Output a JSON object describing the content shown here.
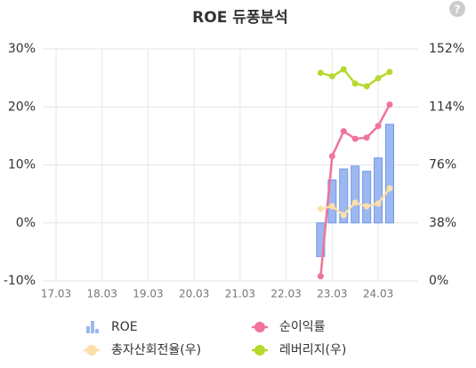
{
  "help": "?",
  "chart_data": {
    "type": "combo",
    "title": "ROE 듀퐁분석",
    "categories": [
      "17.03",
      null,
      null,
      null,
      "18.03",
      null,
      null,
      null,
      "19.03",
      null,
      null,
      null,
      "20.03",
      null,
      null,
      null,
      "21.03",
      null,
      null,
      null,
      "22.03",
      null,
      null,
      null,
      "23.03",
      null,
      null,
      null,
      "24.03",
      null
    ],
    "series": [
      {
        "name": "ROE",
        "type": "bar",
        "axis": "y",
        "color": "#9db8f0",
        "values": [
          null,
          null,
          null,
          null,
          null,
          null,
          null,
          null,
          null,
          null,
          null,
          null,
          null,
          null,
          null,
          null,
          null,
          null,
          null,
          null,
          null,
          null,
          null,
          -5.8,
          7.4,
          9.3,
          9.8,
          8.9,
          11.2,
          17.0
        ]
      },
      {
        "name": "순이익률",
        "type": "line",
        "axis": "y",
        "color": "#f0739b",
        "values": [
          null,
          null,
          null,
          null,
          null,
          null,
          null,
          null,
          null,
          null,
          null,
          null,
          null,
          null,
          null,
          null,
          null,
          null,
          null,
          null,
          null,
          null,
          null,
          -9.2,
          11.5,
          15.8,
          14.5,
          14.7,
          16.7,
          20.4
        ]
      },
      {
        "name": "총자산회전율(우)",
        "type": "line",
        "axis": "y2",
        "color": "#fde0a8",
        "values": [
          null,
          null,
          null,
          null,
          null,
          null,
          null,
          null,
          null,
          null,
          null,
          null,
          null,
          null,
          null,
          null,
          null,
          null,
          null,
          null,
          null,
          null,
          null,
          47.2,
          48.9,
          43.1,
          51.3,
          48.9,
          50.7,
          60.6
        ]
      },
      {
        "name": "레버리지(우)",
        "type": "line",
        "axis": "y2",
        "color": "#b5d92d",
        "values": [
          null,
          null,
          null,
          null,
          null,
          null,
          null,
          null,
          null,
          null,
          null,
          null,
          null,
          null,
          null,
          null,
          null,
          null,
          null,
          null,
          null,
          null,
          null,
          136.3,
          134.0,
          138.6,
          129.3,
          127.5,
          132.8,
          136.9
        ]
      }
    ],
    "ylim": [
      -10,
      30
    ],
    "yticks": [
      {
        "value": -10,
        "label": "-10%"
      },
      {
        "value": 0,
        "label": "0%"
      },
      {
        "value": 10,
        "label": "10%"
      },
      {
        "value": 20,
        "label": "20%"
      },
      {
        "value": 30,
        "label": "30%"
      }
    ],
    "y2lim": [
      0,
      152
    ],
    "y2ticks": [
      {
        "value": 0,
        "label": "0%"
      },
      {
        "value": 38,
        "label": "38%"
      },
      {
        "value": 76,
        "label": "76%"
      },
      {
        "value": 114,
        "label": "114%"
      },
      {
        "value": 152,
        "label": "152%"
      }
    ],
    "grid": true
  }
}
